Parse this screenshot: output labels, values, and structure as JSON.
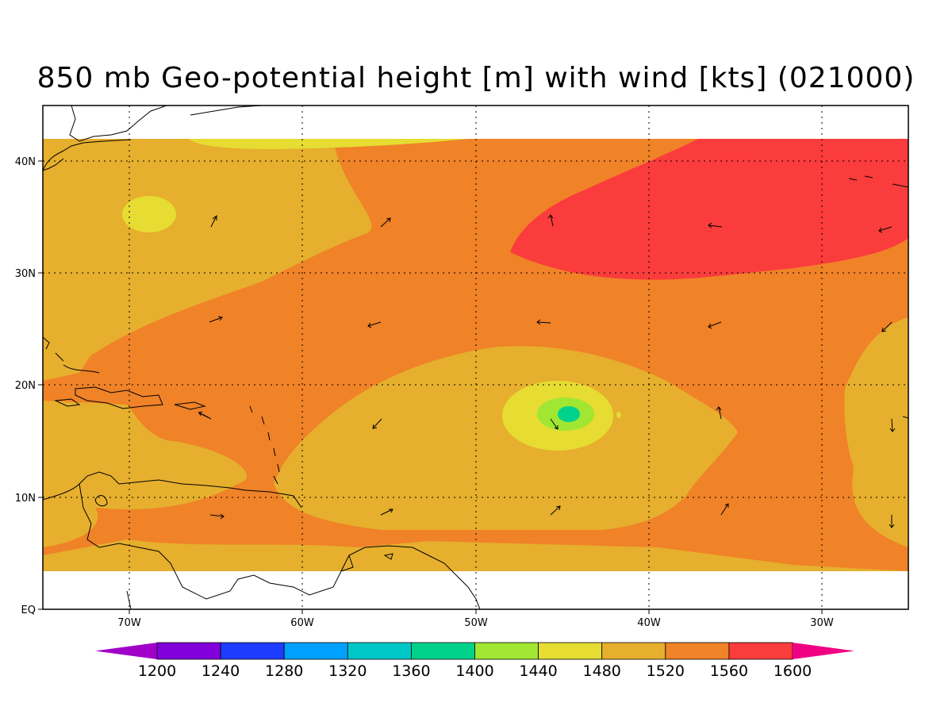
{
  "title": "850 mb Geo-potential height [m] with wind [kts] (021000)",
  "axes": {
    "lat_labels": [
      "40N",
      "30N",
      "20N",
      "10N",
      "EQ"
    ],
    "lon_labels": [
      "70W",
      "60W",
      "50W",
      "40W",
      "30W"
    ]
  },
  "colorbar": {
    "colors": [
      "#a000c8",
      "#8200dc",
      "#1e3cff",
      "#00a0ff",
      "#00c8c8",
      "#00d28c",
      "#a0e632",
      "#e6dc32",
      "#e6af2d",
      "#f08228",
      "#fa3c3c",
      "#f00082"
    ],
    "labels": [
      "1200",
      "1240",
      "1280",
      "1320",
      "1360",
      "1400",
      "1440",
      "1480",
      "1520",
      "1560",
      "1600"
    ]
  },
  "field_colors": {
    "c1520": "#e6af2d",
    "c1480": "#e6dc32",
    "c1560": "#f08228",
    "c1600": "#fa3c3c",
    "c1440": "#a0e632",
    "c1400": "#00d28c"
  }
}
